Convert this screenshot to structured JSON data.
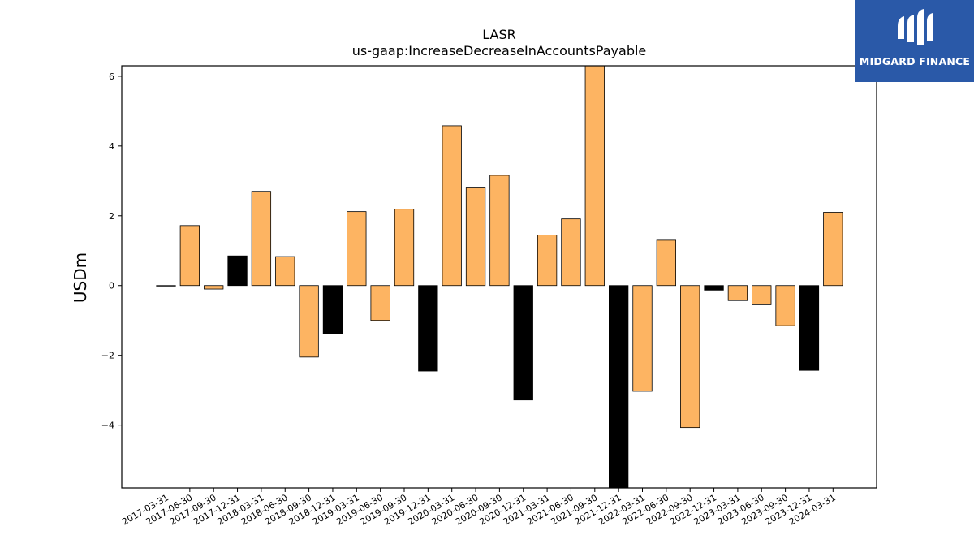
{
  "chart_data": {
    "type": "bar",
    "title": "LASR",
    "subtitle": "us-gaap:IncreaseDecreaseInAccountsPayable",
    "xlabel": "",
    "ylabel": "USDm",
    "ylim": [
      -5.8,
      6.3
    ],
    "yticks": [
      -4,
      -2,
      0,
      2,
      4,
      6
    ],
    "grid": false,
    "colors": {
      "quarterly": "#fdb462",
      "fiscal_q4": "#000000",
      "edge": "#000000"
    },
    "categories": [
      "2017-03-31",
      "2017-06-30",
      "2017-09-30",
      "2017-12-31",
      "2018-03-31",
      "2018-06-30",
      "2018-09-30",
      "2018-12-31",
      "2019-03-31",
      "2019-06-30",
      "2019-09-30",
      "2019-12-31",
      "2020-03-31",
      "2020-06-30",
      "2020-09-30",
      "2020-12-31",
      "2021-03-31",
      "2021-06-30",
      "2021-09-30",
      "2021-12-31",
      "2022-03-31",
      "2022-06-30",
      "2022-09-30",
      "2022-12-31",
      "2023-03-31",
      "2023-06-30",
      "2023-09-30",
      "2023-12-31",
      "2024-03-31"
    ],
    "values": [
      0.0,
      1.72,
      -0.1,
      0.85,
      2.7,
      0.83,
      -2.05,
      -1.37,
      2.12,
      -1.0,
      2.19,
      -2.45,
      4.58,
      2.82,
      3.16,
      -3.28,
      1.45,
      1.91,
      6.5,
      -6.2,
      -3.03,
      1.3,
      -4.07,
      -0.13,
      -0.43,
      -0.55,
      -1.15,
      -2.43,
      2.1
    ],
    "highlight": [
      false,
      false,
      false,
      true,
      false,
      false,
      false,
      true,
      false,
      false,
      false,
      true,
      false,
      false,
      false,
      true,
      false,
      false,
      false,
      true,
      false,
      false,
      false,
      true,
      false,
      false,
      false,
      true,
      false
    ]
  },
  "logo": {
    "text": "MIDGARD FINANCE",
    "icon": "midgard-logo-icon"
  }
}
